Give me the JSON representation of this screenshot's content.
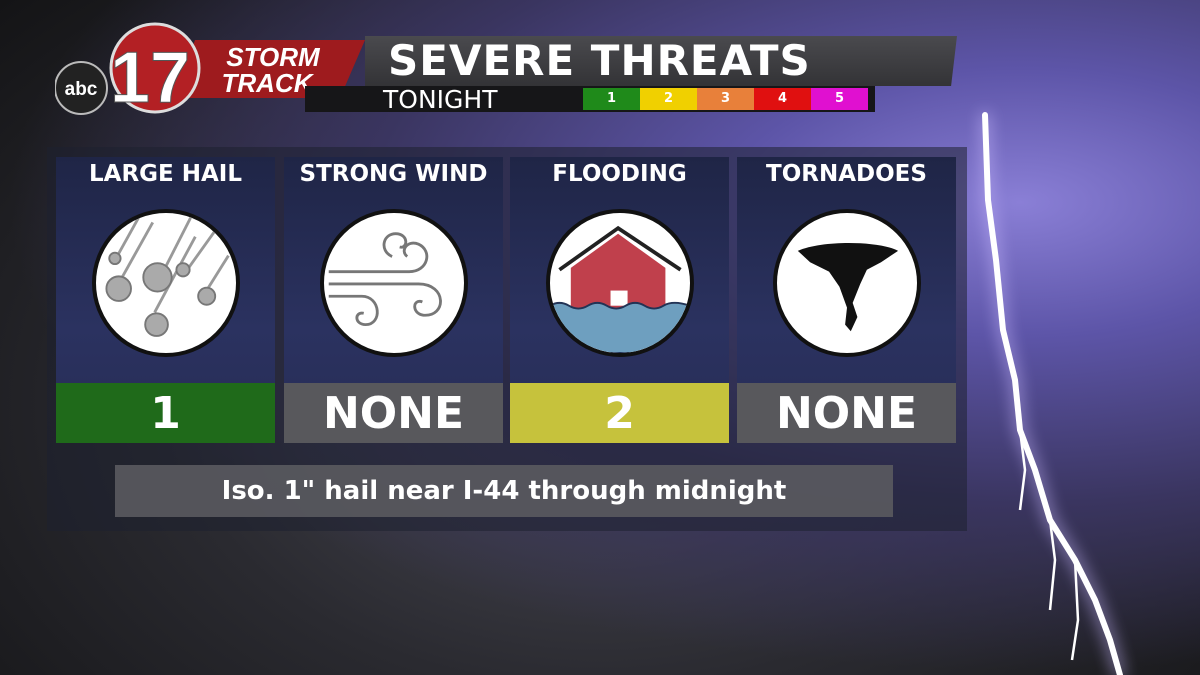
{
  "logo": {
    "network": "abc",
    "channel": "17",
    "brand_line1": "STORM",
    "brand_line2": "TRACK"
  },
  "header": {
    "title": "SEVERE THREATS",
    "subtitle": "TONIGHT"
  },
  "scale": [
    {
      "label": "1",
      "color": "#1f8a1a"
    },
    {
      "label": "2",
      "color": "#f0d000"
    },
    {
      "label": "3",
      "color": "#e8803a"
    },
    {
      "label": "4",
      "color": "#e01010"
    },
    {
      "label": "5",
      "color": "#e010d0"
    }
  ],
  "threats": [
    {
      "name": "LARGE HAIL",
      "icon": "hail-icon",
      "value": "1",
      "color": "#1f6a1a"
    },
    {
      "name": "STRONG WIND",
      "icon": "wind-icon",
      "value": "NONE",
      "color": "#58585c"
    },
    {
      "name": "FLOODING",
      "icon": "flood-icon",
      "value": "2",
      "color": "#c6c23c"
    },
    {
      "name": "TORNADOES",
      "icon": "tornado-icon",
      "value": "NONE",
      "color": "#58585c"
    }
  ],
  "caption": "Iso. 1\" hail near I-44 through midnight"
}
